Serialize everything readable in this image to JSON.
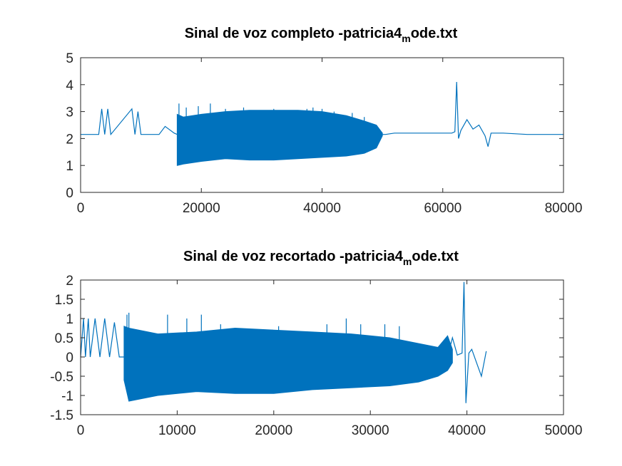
{
  "chart_data": [
    {
      "type": "line",
      "title": "Sinal de voz completo -patricia4",
      "title_subscript": "m",
      "title_suffix": "ode.txt",
      "xlabel": "",
      "ylabel": "",
      "xlim": [
        0,
        80000
      ],
      "ylim": [
        0,
        5
      ],
      "xticks": [
        0,
        20000,
        40000,
        60000,
        80000
      ],
      "yticks": [
        0,
        1,
        2,
        3,
        4,
        5
      ],
      "xtick_labels": [
        "0",
        "20000",
        "40000",
        "60000",
        "80000"
      ],
      "ytick_labels": [
        "0",
        "1",
        "2",
        "3",
        "4",
        "5"
      ],
      "grid": false,
      "color": "#0072BD",
      "series": [
        {
          "x": [
            0,
            3000,
            3500,
            4000,
            4500,
            5000,
            8500,
            9000,
            9500,
            10000,
            13000,
            14000,
            15500,
            16000,
            20000,
            28000,
            36000,
            44000,
            48000,
            49500,
            50500,
            52000,
            60000,
            61500,
            62000,
            62300,
            62600,
            63000,
            64000,
            65000,
            66000,
            67000,
            67500,
            68000,
            70000,
            74000,
            80000
          ],
          "y": [
            2.15,
            2.15,
            3.1,
            2.15,
            3.1,
            2.15,
            3.1,
            2.15,
            3.0,
            2.15,
            2.15,
            2.45,
            2.2,
            2.15,
            2.15,
            2.15,
            2.15,
            2.15,
            2.15,
            2.15,
            2.15,
            2.2,
            2.2,
            2.2,
            2.25,
            4.1,
            2.0,
            2.3,
            2.7,
            2.35,
            2.5,
            2.1,
            1.7,
            2.2,
            2.2,
            2.15,
            2.15
          ],
          "envelope": {
            "x": [
              16000,
              17000,
              20000,
              24000,
              28000,
              32000,
              36000,
              40000,
              44000,
              47000,
              49000,
              50000
            ],
            "upper": [
              2.9,
              2.8,
              2.9,
              3.0,
              3.05,
              3.05,
              3.05,
              3.0,
              2.85,
              2.65,
              2.5,
              2.2
            ],
            "lower": [
              1.0,
              1.05,
              1.15,
              1.25,
              1.2,
              1.2,
              1.25,
              1.3,
              1.35,
              1.45,
              1.65,
              2.1
            ]
          },
          "spikes": {
            "x": [
              16300,
              17500,
              19500,
              21500,
              24000,
              27000,
              32000,
              37500,
              38500,
              40000,
              42000,
              45000,
              47000
            ],
            "y": [
              3.3,
              3.15,
              3.2,
              3.3,
              3.1,
              3.15,
              3.1,
              3.1,
              3.15,
              3.1,
              3.0,
              2.95,
              2.8
            ]
          }
        }
      ]
    },
    {
      "type": "line",
      "title": "Sinal de voz recortado -patricia4",
      "title_subscript": "m",
      "title_suffix": "ode.txt",
      "xlabel": "",
      "ylabel": "",
      "xlim": [
        0,
        50000
      ],
      "ylim": [
        -1.5,
        2
      ],
      "xticks": [
        0,
        10000,
        20000,
        30000,
        40000,
        50000
      ],
      "yticks": [
        -1.5,
        -1,
        -0.5,
        0,
        0.5,
        1,
        1.5,
        2
      ],
      "xtick_labels": [
        "0",
        "10000",
        "20000",
        "30000",
        "40000",
        "50000"
      ],
      "ytick_labels": [
        "-1.5",
        "-1",
        "-0.5",
        "0",
        "0.5",
        "1",
        "1.5",
        "2"
      ],
      "grid": false,
      "color": "#0072BD",
      "series": [
        {
          "x": [
            0,
            300,
            500,
            800,
            1000,
            1500,
            2000,
            2500,
            3000,
            3500,
            4000,
            4500,
            38000,
            38500,
            39000,
            39500,
            39700,
            39900,
            40200,
            40500,
            41000,
            41500,
            42000
          ],
          "y": [
            0,
            1.0,
            0,
            1.0,
            0,
            1.0,
            0,
            1.0,
            0,
            0.9,
            0,
            0,
            0,
            0.5,
            0.05,
            0.1,
            1.95,
            -1.2,
            0.1,
            0.2,
            -0.15,
            -0.5,
            0.15
          ],
          "envelope": {
            "x": [
              4500,
              5000,
              8000,
              12000,
              16000,
              20000,
              24000,
              28000,
              32000,
              35000,
              37000,
              38000,
              38500
            ],
            "upper": [
              0.8,
              0.75,
              0.6,
              0.65,
              0.75,
              0.7,
              0.65,
              0.6,
              0.5,
              0.35,
              0.25,
              0.55,
              0.2
            ],
            "lower": [
              -0.6,
              -1.15,
              -1.0,
              -0.9,
              -0.95,
              -0.95,
              -0.85,
              -0.8,
              -0.75,
              -0.65,
              -0.5,
              -0.35,
              -0.15
            ]
          },
          "spikes": {
            "x": [
              4800,
              5000,
              9000,
              11000,
              12500,
              14500,
              20500,
              25500,
              27500,
              29000,
              31500,
              33000
            ],
            "y": [
              1.1,
              1.15,
              1.1,
              1.0,
              1.1,
              0.85,
              0.8,
              0.85,
              1.0,
              0.85,
              0.85,
              0.8
            ]
          }
        }
      ]
    }
  ]
}
